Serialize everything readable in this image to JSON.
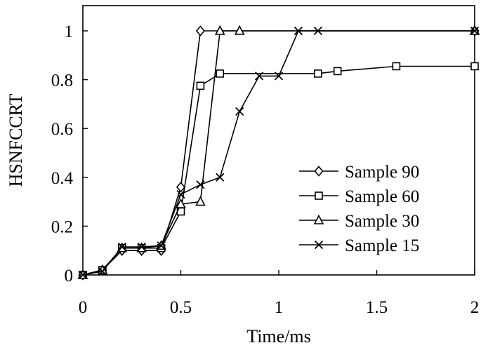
{
  "chart_data": {
    "type": "line",
    "title": "",
    "xlabel": "Time/ms",
    "ylabel": "HSNFCCRT",
    "xlim": [
      0,
      2
    ],
    "ylim": [
      0,
      1.1
    ],
    "xticks": [
      0,
      0.5,
      1,
      1.5,
      2
    ],
    "xtick_labels": [
      "0",
      "0.5",
      "1",
      "1.5",
      "2"
    ],
    "yticks": [
      0,
      0.2,
      0.4,
      0.6,
      0.8,
      1
    ],
    "ytick_labels": [
      "0",
      "0.2",
      "0.4",
      "0.6",
      "0.8",
      "1"
    ],
    "grid": false,
    "legend_position": "bottom-right",
    "series": [
      {
        "name": "Sample 90",
        "marker": "diamond",
        "x": [
          0,
          0.1,
          0.2,
          0.3,
          0.4,
          0.5,
          0.6,
          2
        ],
        "y": [
          0,
          0.02,
          0.1,
          0.1,
          0.1,
          0.36,
          1.0,
          1.0
        ]
      },
      {
        "name": "Sample 60",
        "marker": "square",
        "x": [
          0,
          0.1,
          0.2,
          0.3,
          0.4,
          0.5,
          0.6,
          0.7,
          1.2,
          1.3,
          1.6,
          2
        ],
        "y": [
          0,
          0.02,
          0.11,
          0.11,
          0.11,
          0.26,
          0.775,
          0.825,
          0.825,
          0.835,
          0.855,
          0.855
        ]
      },
      {
        "name": "Sample 30",
        "marker": "triangle",
        "x": [
          0,
          0.1,
          0.2,
          0.3,
          0.4,
          0.5,
          0.6,
          0.7,
          0.8,
          2
        ],
        "y": [
          0,
          0.02,
          0.11,
          0.11,
          0.12,
          0.29,
          0.3,
          1.0,
          1.0,
          1.0
        ]
      },
      {
        "name": "Sample 15",
        "marker": "x",
        "x": [
          0,
          0.1,
          0.2,
          0.3,
          0.4,
          0.5,
          0.6,
          0.7,
          0.8,
          0.9,
          1.0,
          1.1,
          1.2,
          2
        ],
        "y": [
          0,
          0.015,
          0.115,
          0.115,
          0.12,
          0.33,
          0.37,
          0.4,
          0.67,
          0.815,
          0.815,
          1.0,
          1.0,
          1.0
        ]
      }
    ]
  }
}
